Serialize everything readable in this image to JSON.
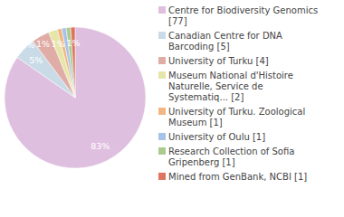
{
  "chart_data": {
    "type": "pie",
    "categories": [
      "Centre for Biodiversity Genomics [77]",
      "Canadian Centre for DNA Barcoding [5]",
      "University of Turku [4]",
      "Museum National d'Histoire Naturelle, Service de Systematiq... [2]",
      "University of Turku. Zoological Museum [1]",
      "University of Oulu [1]",
      "Research Collection of Sofia Gripenberg [1]",
      "Mined from GenBank, NCBI [1]"
    ],
    "values": [
      83,
      5,
      4,
      2,
      1,
      1,
      1,
      1
    ],
    "value_labels": [
      "83%",
      "5%",
      "4%",
      "2%",
      "1%",
      "1%",
      "1%",
      "1%"
    ],
    "colors": [
      "#dfbfe0",
      "#c9dbe7",
      "#e0aca6",
      "#e6e6a8",
      "#f1b682",
      "#a7c2e8",
      "#abcb8e",
      "#e0755f"
    ],
    "data_labels": true,
    "legend": "right"
  }
}
